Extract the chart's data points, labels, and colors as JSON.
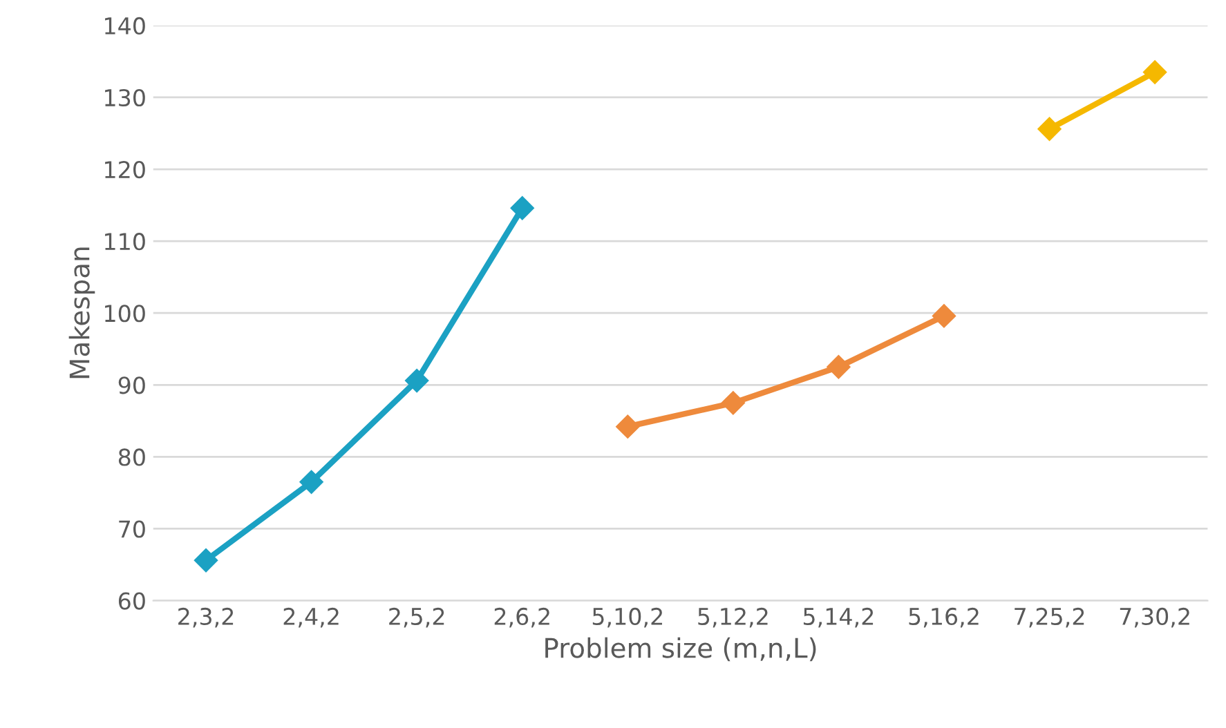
{
  "chart_data": {
    "type": "line",
    "xlabel": "Problem size (m,n,L)",
    "ylabel": "Makespan",
    "categories": [
      "2,3,2",
      "2,4,2",
      "2,5,2",
      "2,6,2",
      "5,10,2",
      "5,12,2",
      "5,14,2",
      "5,16,2",
      "7,25,2",
      "7,30,2"
    ],
    "series": [
      {
        "color": "#1ba1c3",
        "values": [
          65.6,
          76.5,
          90.6,
          114.6,
          null,
          null,
          null,
          null,
          null,
          null
        ]
      },
      {
        "color": "#ee8a3c",
        "values": [
          null,
          null,
          null,
          null,
          84.2,
          87.5,
          92.5,
          99.6,
          null,
          null
        ]
      },
      {
        "color": "#f5b800",
        "values": [
          null,
          null,
          null,
          null,
          null,
          null,
          null,
          null,
          125.6,
          133.5
        ]
      }
    ],
    "ylim": [
      60,
      140
    ],
    "yticks": [
      60,
      70,
      80,
      90,
      100,
      110,
      120,
      130,
      140
    ],
    "grid": "y",
    "marker": "diamond",
    "line_style": "solid",
    "legend": false
  }
}
